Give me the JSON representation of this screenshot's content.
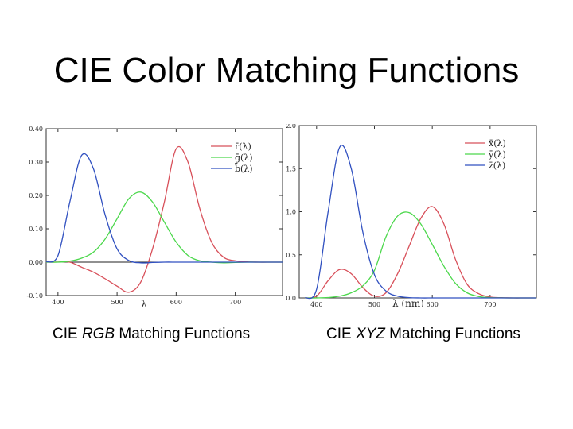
{
  "title": "CIE Color Matching Functions",
  "captions": {
    "rgb": {
      "prefix": "CIE ",
      "italic": "RGB",
      "suffix": " Matching Functions"
    },
    "xyz": {
      "prefix": "CIE ",
      "italic": "XYZ",
      "suffix": " Matching Functions"
    }
  },
  "chart_data": [
    {
      "type": "line",
      "title": "",
      "xlabel": "λ",
      "ylabel": "",
      "xlim": [
        380,
        780
      ],
      "ylim": [
        -0.1,
        0.4
      ],
      "grid": false,
      "legend_position": "top-right",
      "x_ticks": [
        400,
        500,
        600,
        700
      ],
      "y_ticks": [
        -0.1,
        0.0,
        0.1,
        0.2,
        0.3,
        0.4
      ],
      "y_tick_labels": [
        "-0.10",
        "0.00",
        "0.10",
        "0.20",
        "0.30",
        "0.40"
      ],
      "x": [
        380,
        400,
        420,
        440,
        460,
        480,
        500,
        520,
        540,
        560,
        580,
        600,
        620,
        640,
        660,
        680,
        700,
        720,
        740,
        760,
        780
      ],
      "series": [
        {
          "name": "r̄(λ)",
          "color": "#d8505a",
          "values": [
            0.0,
            0.0003,
            0.0,
            -0.015,
            -0.03,
            -0.05,
            -0.072,
            -0.09,
            -0.06,
            0.04,
            0.18,
            0.34,
            0.3,
            0.16,
            0.06,
            0.015,
            0.004,
            0.001,
            0.0,
            0.0,
            0.0
          ]
        },
        {
          "name": "ḡ(λ)",
          "color": "#4cd84c",
          "values": [
            0.0,
            0.0,
            0.003,
            0.012,
            0.03,
            0.07,
            0.13,
            0.19,
            0.21,
            0.18,
            0.12,
            0.06,
            0.02,
            0.004,
            0.0,
            -0.002,
            -0.001,
            0.0,
            0.0,
            0.0,
            0.0
          ]
        },
        {
          "name": "b̄(λ)",
          "color": "#3050c0",
          "values": [
            0.001,
            0.02,
            0.18,
            0.32,
            0.28,
            0.14,
            0.04,
            0.005,
            -0.002,
            -0.001,
            0.0,
            0.0,
            0.0,
            0.0,
            0.0,
            0.0,
            0.0,
            0.0,
            0.0,
            0.0,
            0.0
          ]
        }
      ]
    },
    {
      "type": "line",
      "title": "",
      "xlabel": "λ (nm)",
      "ylabel": "",
      "xlim": [
        370,
        780
      ],
      "ylim": [
        0,
        2.0
      ],
      "grid": false,
      "legend_position": "top-right",
      "x_ticks": [
        400,
        500,
        600,
        700
      ],
      "y_ticks": [
        0.0,
        0.5,
        1.0,
        1.5,
        2.0
      ],
      "y_tick_labels": [
        "0.0",
        "0.5",
        "1.0",
        "1.5",
        "2.0"
      ],
      "x": [
        380,
        400,
        420,
        440,
        460,
        480,
        500,
        520,
        540,
        560,
        580,
        600,
        620,
        640,
        660,
        680,
        700,
        720,
        740,
        760,
        780
      ],
      "series": [
        {
          "name": "x̄(λ)",
          "color": "#d8505a",
          "values": [
            0.0,
            0.02,
            0.2,
            0.33,
            0.28,
            0.12,
            0.02,
            0.06,
            0.28,
            0.6,
            0.92,
            1.06,
            0.86,
            0.45,
            0.16,
            0.05,
            0.01,
            0.003,
            0.0,
            0.0,
            0.0
          ]
        },
        {
          "name": "ȳ(λ)",
          "color": "#4cd84c",
          "values": [
            0.0,
            0.0,
            0.005,
            0.02,
            0.06,
            0.14,
            0.32,
            0.71,
            0.95,
            0.99,
            0.86,
            0.62,
            0.37,
            0.17,
            0.06,
            0.017,
            0.004,
            0.001,
            0.0,
            0.0,
            0.0
          ]
        },
        {
          "name": "z̄(λ)",
          "color": "#3050c0",
          "values": [
            0.0,
            0.1,
            1.0,
            1.75,
            1.5,
            0.76,
            0.27,
            0.08,
            0.02,
            0.004,
            0.0,
            0.0,
            0.0,
            0.0,
            0.0,
            0.0,
            0.0,
            0.0,
            0.0,
            0.0,
            0.0
          ]
        }
      ]
    }
  ]
}
